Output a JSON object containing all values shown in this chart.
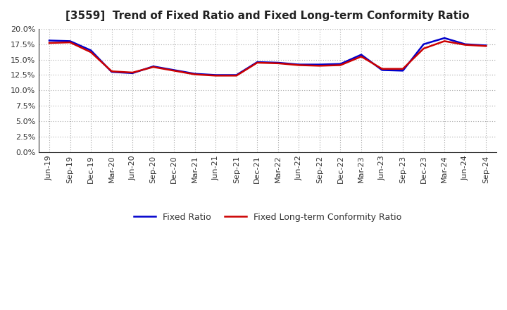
{
  "title": "[3559]  Trend of Fixed Ratio and Fixed Long-term Conformity Ratio",
  "x_labels": [
    "Jun-19",
    "Sep-19",
    "Dec-19",
    "Mar-20",
    "Jun-20",
    "Sep-20",
    "Dec-20",
    "Mar-21",
    "Jun-21",
    "Sep-21",
    "Dec-21",
    "Mar-22",
    "Jun-22",
    "Sep-22",
    "Dec-22",
    "Mar-23",
    "Jun-23",
    "Sep-23",
    "Dec-23",
    "Mar-24",
    "Jun-24",
    "Sep-24"
  ],
  "fixed_ratio": [
    18.1,
    18.0,
    16.5,
    13.0,
    12.8,
    13.9,
    13.3,
    12.7,
    12.5,
    12.5,
    14.6,
    14.5,
    14.2,
    14.2,
    14.3,
    15.8,
    13.3,
    13.2,
    17.5,
    18.5,
    17.5,
    17.3
  ],
  "fixed_lt_ratio": [
    17.7,
    17.8,
    16.2,
    13.1,
    12.9,
    13.8,
    13.2,
    12.6,
    12.4,
    12.4,
    14.5,
    14.4,
    14.1,
    14.0,
    14.1,
    15.5,
    13.5,
    13.5,
    16.8,
    18.0,
    17.4,
    17.2
  ],
  "fixed_ratio_color": "#0000cc",
  "fixed_lt_ratio_color": "#cc0000",
  "ylim": [
    0.0,
    20.0
  ],
  "yticks": [
    0.0,
    2.5,
    5.0,
    7.5,
    10.0,
    12.5,
    15.0,
    17.5,
    20.0
  ],
  "background_color": "#ffffff",
  "plot_bg_color": "#ffffff",
  "grid_color": "#aaaaaa",
  "line_width": 1.8,
  "legend_fixed_ratio": "Fixed Ratio",
  "legend_fixed_lt_ratio": "Fixed Long-term Conformity Ratio",
  "title_fontsize": 11,
  "tick_fontsize": 8,
  "legend_fontsize": 9
}
